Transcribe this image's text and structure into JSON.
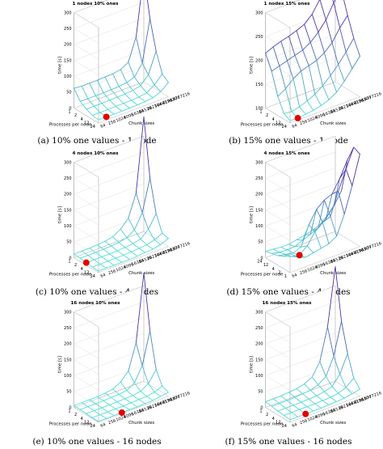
{
  "figure": {
    "colors": {
      "mesh_low": "#53e3d8",
      "mesh_high": "#4a36a8",
      "marker": "#e60000"
    }
  },
  "chart_data": [
    {
      "type": "surface",
      "title": "1 nodes 10% ones",
      "caption": "(a) 10% one values - 1 node",
      "xlabel": "Processes per node",
      "ylabel": "Chunk sizes",
      "zlabel": "time [s]",
      "x_ticks": [
        "24",
        "12",
        "4",
        "2",
        "1"
      ],
      "y_ticks": [
        "64",
        "256",
        "1024",
        "4096",
        "16384",
        "65536",
        "262144",
        "1048576",
        "4194304",
        "16777216"
      ],
      "zlim": [
        0,
        300
      ],
      "z_ticks": [
        "0",
        "50",
        "100",
        "150",
        "200",
        "250",
        "300"
      ],
      "grid": true,
      "marker": {
        "process_index": 0,
        "chunk_index": 1
      },
      "values": [
        [
          10,
          10,
          9,
          10,
          10,
          11,
          12,
          15,
          25,
          45
        ],
        [
          12,
          12,
          12,
          13,
          13,
          14,
          15,
          19,
          35,
          60
        ],
        [
          20,
          20,
          20,
          21,
          21,
          22,
          24,
          30,
          55,
          120
        ],
        [
          33,
          32,
          32,
          32,
          33,
          34,
          37,
          45,
          80,
          210
        ],
        [
          62,
          60,
          60,
          60,
          61,
          62,
          66,
          80,
          150,
          340
        ]
      ]
    },
    {
      "type": "surface",
      "title": "1 nodes 15% ones",
      "caption": "(b) 15% one values - 1 node",
      "xlabel": "Processes per node",
      "ylabel": "Chunk sizes",
      "zlabel": "time [s]",
      "x_ticks": [
        "24",
        "12",
        "4",
        "2",
        "1"
      ],
      "y_ticks": [
        "64",
        "256",
        "1024",
        "4096",
        "16384",
        "65536",
        "262144",
        "1048576",
        "4194304",
        "16777216"
      ],
      "zlim": [
        100,
        300
      ],
      "z_ticks": [
        "100",
        "150",
        "200",
        "250",
        "300"
      ],
      "grid": true,
      "marker": {
        "process_index": 0,
        "chunk_index": 1
      },
      "values": [
        [
          105,
          104,
          106,
          108,
          112,
          118,
          128,
          145,
          165,
          185
        ],
        [
          112,
          110,
          114,
          120,
          128,
          140,
          155,
          172,
          192,
          215
        ],
        [
          140,
          150,
          165,
          175,
          180,
          185,
          195,
          210,
          235,
          255
        ],
        [
          185,
          190,
          195,
          200,
          205,
          215,
          230,
          250,
          280,
          300
        ],
        [
          215,
          222,
          228,
          232,
          238,
          245,
          260,
          285,
          305,
          330
        ]
      ]
    },
    {
      "type": "surface",
      "title": "4 nodes 10% ones",
      "caption": "(c) 10% one values - 4 nodes",
      "xlabel": "Processes per node",
      "ylabel": "Chunk sizes",
      "zlabel": "time [s]",
      "x_ticks": [
        "24",
        "12",
        "4",
        "2",
        "1"
      ],
      "y_ticks": [
        "64",
        "256",
        "1024",
        "4096",
        "16384",
        "65536",
        "262144",
        "1048576",
        "4194304",
        "16777216"
      ],
      "zlim": [
        0,
        300
      ],
      "z_ticks": [
        "0",
        "50",
        "100",
        "150",
        "200",
        "250",
        "300"
      ],
      "grid": true,
      "marker": {
        "process_index": 2,
        "chunk_index": 0
      },
      "values": [
        [
          5,
          5,
          5,
          5,
          5,
          6,
          8,
          10,
          15,
          25
        ],
        [
          6,
          6,
          6,
          6,
          7,
          8,
          10,
          12,
          18,
          30
        ],
        [
          8,
          8,
          8,
          8,
          9,
          10,
          13,
          18,
          40,
          80
        ],
        [
          10,
          10,
          10,
          11,
          12,
          14,
          20,
          35,
          80,
          180
        ],
        [
          12,
          12,
          12,
          13,
          15,
          20,
          35,
          60,
          130,
          360
        ]
      ]
    },
    {
      "type": "surface",
      "title": "4 nodes 15% ones",
      "caption": "(d) 15% one values - 4 nodes",
      "xlabel": "Processes per node",
      "ylabel": "Chunk sizes",
      "zlabel": "time [s]",
      "x_ticks": [
        "1",
        "2",
        "4",
        "12",
        "24"
      ],
      "y_ticks": [
        "64",
        "256",
        "1024",
        "4096",
        "16384",
        "65536",
        "262144",
        "1048576",
        "4194304",
        "16777216"
      ],
      "zlim": [
        0,
        300
      ],
      "z_ticks": [
        "0",
        "50",
        "100",
        "150",
        "200",
        "250",
        "300"
      ],
      "grid": true,
      "marker": {
        "process_index": 1,
        "chunk_index": 2
      },
      "values": [
        [
          60,
          40,
          30,
          35,
          40,
          45,
          60,
          120,
          200,
          290
        ],
        [
          40,
          30,
          25,
          45,
          80,
          100,
          110,
          180,
          240,
          300
        ],
        [
          30,
          25,
          20,
          30,
          90,
          130,
          150,
          160,
          200,
          250
        ],
        [
          25,
          20,
          18,
          20,
          30,
          40,
          50,
          70,
          100,
          140
        ],
        [
          20,
          18,
          15,
          15,
          20,
          25,
          30,
          40,
          60,
          90
        ]
      ]
    },
    {
      "type": "surface",
      "title": "16 nodes 10% ones",
      "caption": "(e) 10% one values - 16 nodes",
      "xlabel": "Processes per node",
      "ylabel": "Chunk sizes",
      "zlabel": "time [s]",
      "x_ticks": [
        "24",
        "12",
        "4",
        "2",
        "1"
      ],
      "y_ticks": [
        "64",
        "256",
        "1024",
        "4096",
        "16384",
        "65536",
        "262144",
        "1048576",
        "4194304",
        "16777216"
      ],
      "zlim": [
        0,
        300
      ],
      "z_ticks": [
        "0",
        "50",
        "100",
        "150",
        "200",
        "250",
        "300"
      ],
      "grid": true,
      "marker": {
        "process_index": 0,
        "chunk_index": 3
      },
      "values": [
        [
          3,
          3,
          3,
          3,
          3,
          3,
          4,
          5,
          8,
          12
        ],
        [
          3,
          3,
          3,
          3,
          3,
          4,
          5,
          6,
          10,
          20
        ],
        [
          4,
          4,
          4,
          4,
          4,
          5,
          6,
          10,
          25,
          60
        ],
        [
          5,
          5,
          5,
          5,
          6,
          7,
          10,
          25,
          70,
          170
        ],
        [
          6,
          6,
          6,
          6,
          8,
          12,
          25,
          50,
          130,
          340
        ]
      ]
    },
    {
      "type": "surface",
      "title": "16 nodes 15% ones",
      "caption": "(f) 15% one values - 16 nodes",
      "xlabel": "Processes per node",
      "ylabel": "Chunk sizes",
      "zlabel": "time [s]",
      "x_ticks": [
        "24",
        "12",
        "4",
        "2",
        "1"
      ],
      "y_ticks": [
        "64",
        "256",
        "1024",
        "4096",
        "16384",
        "65536",
        "262144",
        "1048576",
        "4194304",
        "16777216"
      ],
      "zlim": [
        0,
        300
      ],
      "z_ticks": [
        "0",
        "50",
        "100",
        "150",
        "200",
        "250",
        "300"
      ],
      "grid": true,
      "marker": {
        "process_index": 0,
        "chunk_index": 2
      },
      "values": [
        [
          8,
          8,
          8,
          8,
          8,
          9,
          10,
          12,
          16,
          22
        ],
        [
          10,
          10,
          10,
          10,
          10,
          11,
          12,
          15,
          25,
          45
        ],
        [
          12,
          12,
          12,
          12,
          13,
          14,
          18,
          25,
          55,
          110
        ],
        [
          15,
          15,
          15,
          16,
          18,
          20,
          28,
          45,
          100,
          200
        ],
        [
          18,
          18,
          18,
          20,
          22,
          28,
          40,
          80,
          180,
          360
        ]
      ]
    }
  ]
}
